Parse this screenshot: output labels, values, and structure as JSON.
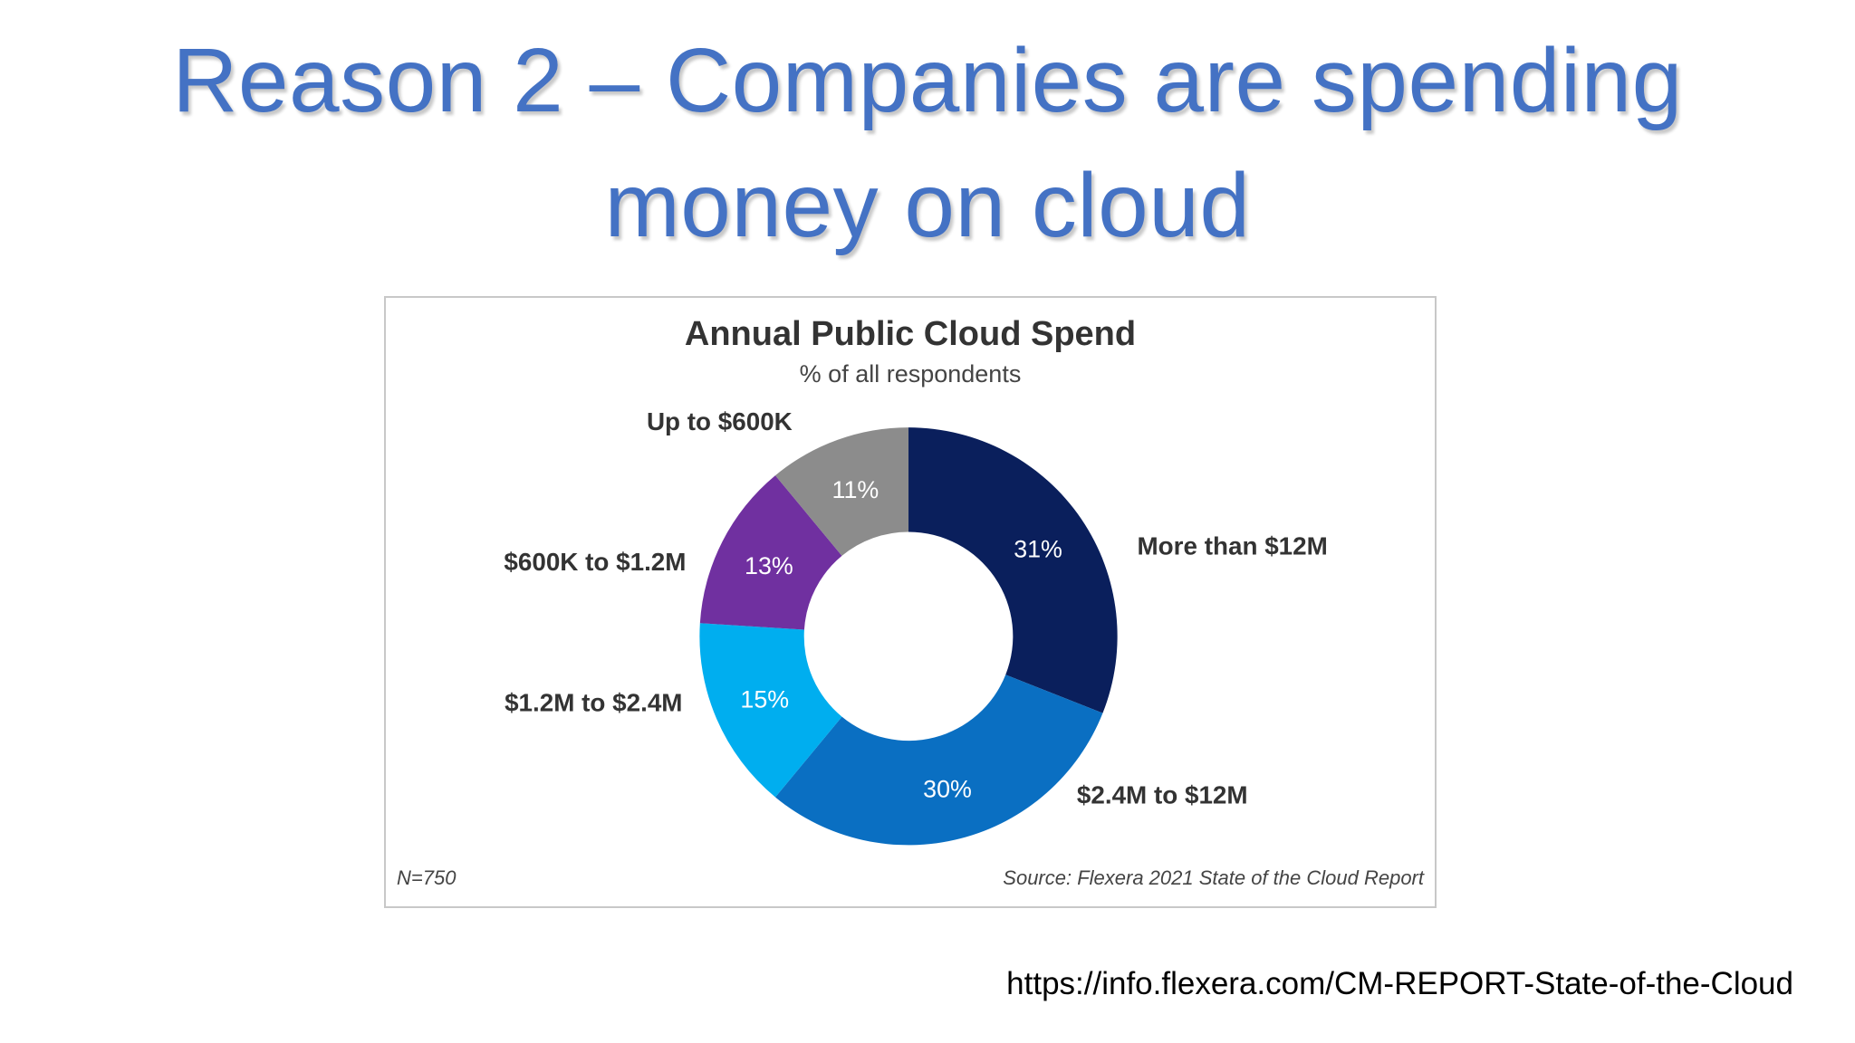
{
  "slide": {
    "title_line1": "Reason 2 – Companies are spending",
    "title_line2": "money on cloud",
    "source_url": "https://info.flexera.com/CM-REPORT-State-of-the-Cloud"
  },
  "chart_data": {
    "type": "pie",
    "donut": true,
    "title": "Annual Public Cloud Spend",
    "subtitle": "% of all respondents",
    "unit": "%",
    "slices": [
      {
        "label": "More than $12M",
        "value": 31,
        "value_label": "31%",
        "color": "#0a1f5c"
      },
      {
        "label": "$2.4M to $12M",
        "value": 30,
        "value_label": "30%",
        "color": "#0a6fc2"
      },
      {
        "label": "$1.2M to $2.4M",
        "value": 15,
        "value_label": "15%",
        "color": "#00aeef"
      },
      {
        "label": "$600K to $1.2M",
        "value": 13,
        "value_label": "13%",
        "color": "#7030a0"
      },
      {
        "label": "Up to $600K",
        "value": 11,
        "value_label": "11%",
        "color": "#8c8c8c"
      }
    ],
    "footnote_left": "N=750",
    "footnote_right": "Source: Flexera 2021 State of the Cloud Report"
  }
}
